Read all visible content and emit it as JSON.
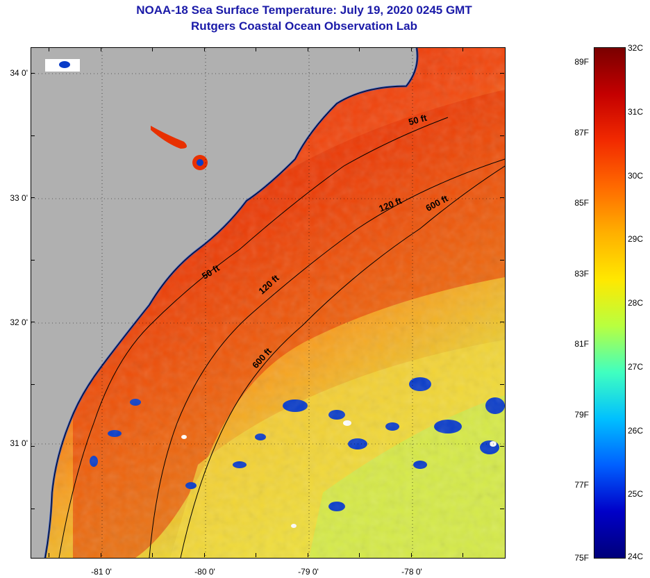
{
  "title_line1": "NOAA-18 Sea Surface Temperature:  July 19, 2020 0245 GMT",
  "title_line2": "Rutgers Coastal Ocean Observation Lab",
  "lat_labels": [
    "34 0'",
    "33 0'",
    "32 0'",
    "31 0'"
  ],
  "lon_labels": [
    "-81 0'",
    "-80 0'",
    "-79 0'",
    "-78 0'"
  ],
  "isobath_labels": [
    "50 ft",
    "120 ft",
    "600 ft",
    "50 ft",
    "120 ft",
    "600 ft"
  ],
  "colorbar": {
    "fahrenheit": [
      "89F",
      "87F",
      "85F",
      "83F",
      "81F",
      "79F",
      "77F",
      "75F"
    ],
    "celsius": [
      "32C",
      "31C",
      "30C",
      "29C",
      "28C",
      "27C",
      "26C",
      "25C",
      "24C"
    ],
    "colors": [
      "#7a0000",
      "#c40000",
      "#f22a00",
      "#ff6a00",
      "#ffb000",
      "#ffe800",
      "#b8ff40",
      "#40ffc0",
      "#00c0ff",
      "#0060ff",
      "#0000c8",
      "#00007a"
    ]
  },
  "colors": {
    "land": "#b0b0b0",
    "warm": "#e83000",
    "mid": "#f3a020",
    "cool": "#e8f040",
    "cold": "#0a3cc8"
  }
}
